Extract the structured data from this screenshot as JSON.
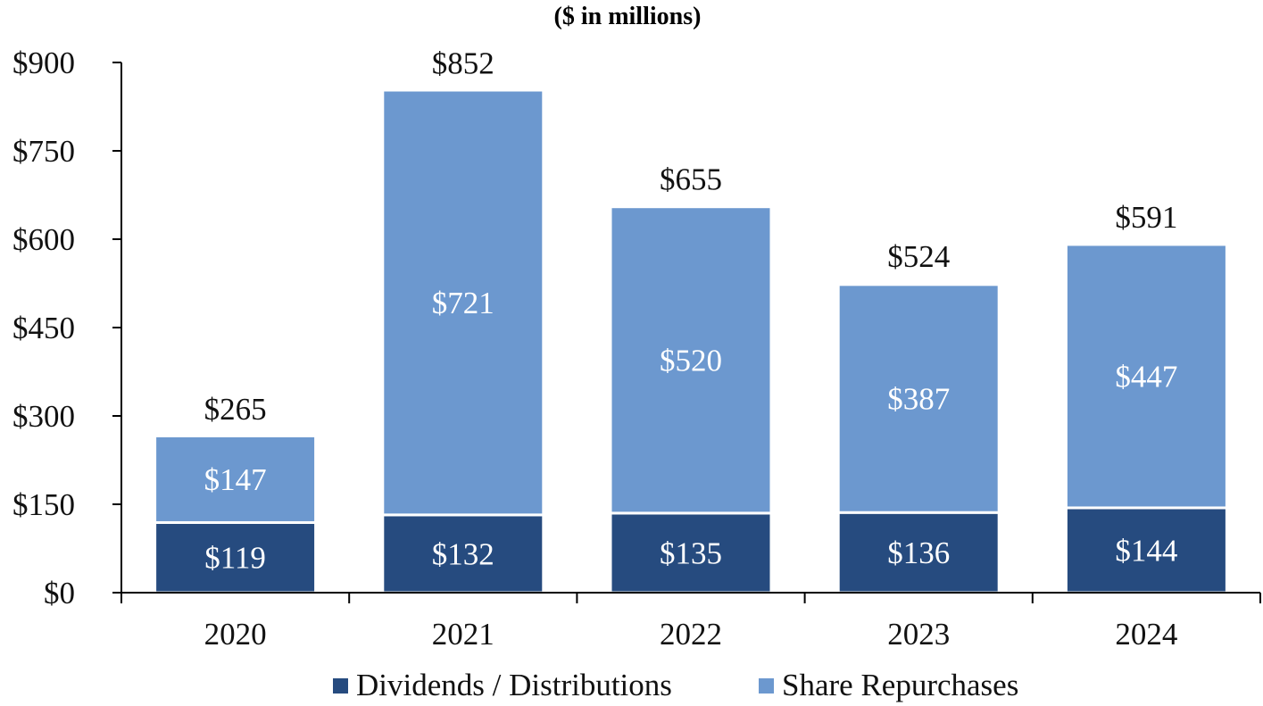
{
  "chart_data": {
    "type": "bar",
    "stacked": true,
    "title": "",
    "subtitle": "($ in millions)",
    "xlabel": "",
    "ylabel": "",
    "categories": [
      "2020",
      "2021",
      "2022",
      "2023",
      "2024"
    ],
    "series": [
      {
        "name": "Dividends / Distributions",
        "color": "#264B7F",
        "values": [
          119,
          132,
          135,
          136,
          144
        ],
        "labels": [
          "$119",
          "$132",
          "$135",
          "$136",
          "$144"
        ]
      },
      {
        "name": "Share Repurchases",
        "color": "#6C98CF",
        "values": [
          147,
          721,
          520,
          387,
          447
        ],
        "labels": [
          "$147",
          "$721",
          "$520",
          "$387",
          "$447"
        ]
      }
    ],
    "totals": [
      265,
      852,
      655,
      524,
      591
    ],
    "total_labels": [
      "$265",
      "$852",
      "$655",
      "$524",
      "$591"
    ],
    "ylim": [
      0,
      900
    ],
    "yticks": [
      0,
      150,
      300,
      450,
      600,
      750,
      900
    ],
    "ytick_labels": [
      "$0",
      "$150",
      "$300",
      "$450",
      "$600",
      "$750",
      "$900"
    ],
    "grid": false,
    "legend_position": "bottom-center"
  }
}
